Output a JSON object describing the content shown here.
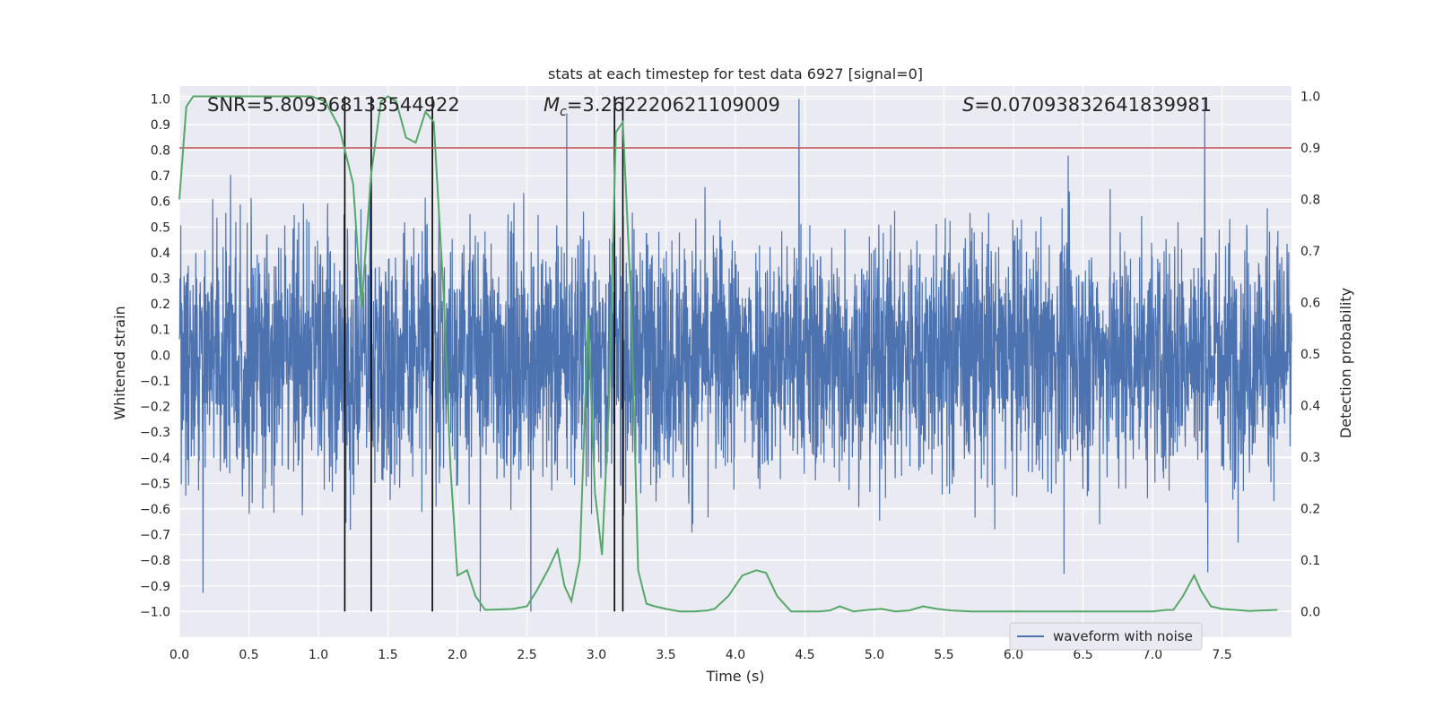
{
  "chart_data": {
    "type": "line",
    "title": "stats at each timestep for test data 6927 [signal=0]",
    "xlabel": "Time (s)",
    "ylabel_left": "Whitened strain",
    "ylabel_right": "Detection probability",
    "xlim": [
      0.0,
      8.0
    ],
    "ylim_left": [
      -1.1,
      1.05
    ],
    "ylim_right": [
      -0.05,
      1.02
    ],
    "x_ticks": [
      0.0,
      0.5,
      1.0,
      1.5,
      2.0,
      2.5,
      3.0,
      3.5,
      4.0,
      4.5,
      5.0,
      5.5,
      6.0,
      6.5,
      7.0,
      7.5
    ],
    "x_tick_labels": [
      "0.0",
      "0.5",
      "1.0",
      "1.5",
      "2.0",
      "2.5",
      "3.0",
      "3.5",
      "4.0",
      "4.5",
      "5.0",
      "5.5",
      "6.0",
      "6.5",
      "7.0",
      "7.5"
    ],
    "y_left_ticks": [
      1.0,
      0.9,
      0.8,
      0.7,
      0.6,
      0.5,
      0.4,
      0.3,
      0.2,
      0.1,
      0.0,
      -0.1,
      -0.2,
      -0.3,
      -0.4,
      -0.5,
      -0.6,
      -0.7,
      -0.8,
      -0.9,
      -1.0
    ],
    "y_left_tick_labels": [
      "1.0",
      "0.9",
      "0.8",
      "0.7",
      "0.6",
      "0.5",
      "0.4",
      "0.3",
      "0.2",
      "0.1",
      "0.0",
      "−0.1",
      "−0.2",
      "−0.3",
      "−0.4",
      "−0.5",
      "−0.6",
      "−0.7",
      "−0.8",
      "−0.9",
      "−1.0"
    ],
    "y_right_ticks": [
      1.0,
      0.9,
      0.8,
      0.7,
      0.6,
      0.5,
      0.4,
      0.3,
      0.2,
      0.1,
      0.0
    ],
    "y_right_tick_labels": [
      "1.0",
      "0.9",
      "0.8",
      "0.7",
      "0.6",
      "0.5",
      "0.4",
      "0.3",
      "0.2",
      "0.1",
      "0.0"
    ],
    "threshold": 0.9,
    "vlines": [
      1.19,
      1.38,
      1.82,
      3.13,
      3.19
    ],
    "annotations": {
      "snr": "SNR=5.809368133544922",
      "mc_symbol": "M",
      "mc_sub": "c",
      "mc_value": "=3.262220621109009",
      "s_symbol": "S",
      "s_value": "=0.07093832641839981"
    },
    "legend": {
      "label": "waveform with noise",
      "loc": "lower right"
    },
    "series": [
      {
        "name": "waveform with noise",
        "axis": "left",
        "color": "#4c72b0",
        "note": "dense noise, typical amplitude about ±0.35 with occasional spikes to about ±1.0"
      },
      {
        "name": "detection probability",
        "axis": "right",
        "color": "#55a868",
        "x": [
          0.0,
          0.05,
          0.1,
          0.2,
          0.4,
          0.6,
          0.8,
          0.95,
          1.05,
          1.15,
          1.25,
          1.31,
          1.38,
          1.45,
          1.5,
          1.56,
          1.63,
          1.7,
          1.77,
          1.83,
          1.9,
          1.95,
          2.0,
          2.07,
          2.13,
          2.2,
          2.3,
          2.4,
          2.5,
          2.57,
          2.65,
          2.72,
          2.77,
          2.82,
          2.88,
          2.94,
          2.99,
          3.04,
          3.09,
          3.14,
          3.19,
          3.25,
          3.3,
          3.36,
          3.42,
          3.5,
          3.6,
          3.7,
          3.8,
          3.85,
          3.95,
          4.05,
          4.1,
          4.15,
          4.22,
          4.3,
          4.4,
          4.5,
          4.6,
          4.68,
          4.75,
          4.85,
          4.95,
          5.05,
          5.15,
          5.25,
          5.35,
          5.45,
          5.55,
          5.7,
          5.9,
          6.2,
          6.5,
          6.8,
          7.0,
          7.1,
          7.15,
          7.22,
          7.3,
          7.35,
          7.42,
          7.5,
          7.7,
          7.9
        ],
        "y": [
          0.8,
          0.98,
          1.0,
          1.0,
          1.0,
          1.0,
          1.0,
          1.0,
          0.99,
          0.94,
          0.83,
          0.59,
          0.85,
          0.99,
          1.0,
          0.99,
          0.92,
          0.91,
          0.97,
          0.95,
          0.62,
          0.28,
          0.07,
          0.08,
          0.03,
          0.003,
          0.004,
          0.005,
          0.01,
          0.04,
          0.08,
          0.12,
          0.05,
          0.02,
          0.1,
          0.57,
          0.23,
          0.11,
          0.4,
          0.93,
          0.95,
          0.6,
          0.08,
          0.015,
          0.01,
          0.005,
          0.0,
          0.0,
          0.002,
          0.005,
          0.03,
          0.07,
          0.075,
          0.08,
          0.075,
          0.03,
          0.0,
          0.0,
          0.0,
          0.002,
          0.01,
          0.0,
          0.003,
          0.005,
          0.0,
          0.002,
          0.01,
          0.005,
          0.002,
          0.0,
          0.0,
          0.0,
          0.0,
          0.0,
          0.0,
          0.003,
          0.003,
          0.03,
          0.07,
          0.04,
          0.01,
          0.005,
          0.001,
          0.003
        ]
      },
      {
        "name": "threshold",
        "axis": "right",
        "color": "#c44e52",
        "values": [
          0.9
        ]
      }
    ]
  }
}
